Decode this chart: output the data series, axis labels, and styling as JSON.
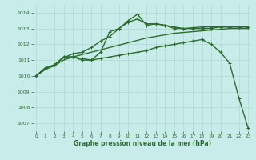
{
  "title": "Graphe pression niveau de la mer (hPa)",
  "background_color": "#c8ecea",
  "grid_color": "#b0d8d4",
  "line_color": "#2d6e2d",
  "xlim": [
    -0.3,
    23.3
  ],
  "ylim": [
    1006.5,
    1014.5
  ],
  "yticks": [
    1007,
    1008,
    1009,
    1010,
    1011,
    1012,
    1013,
    1014
  ],
  "xticks": [
    0,
    1,
    2,
    3,
    4,
    5,
    6,
    7,
    8,
    9,
    10,
    11,
    12,
    13,
    14,
    15,
    16,
    17,
    18,
    19,
    20,
    21,
    22,
    23
  ],
  "series": [
    {
      "x": [
        0,
        1,
        2,
        3,
        4,
        5,
        6,
        7,
        8,
        9,
        10,
        11,
        12,
        13,
        14,
        15,
        16,
        17,
        18,
        19,
        20,
        21,
        22,
        23
      ],
      "y": [
        1010.0,
        1010.5,
        1010.7,
        1011.2,
        1011.2,
        1011.0,
        1011.0,
        1011.5,
        1012.8,
        1013.0,
        1013.5,
        1013.9,
        1013.2,
        1013.3,
        1013.2,
        1013.0,
        1013.0,
        1013.0,
        1013.0,
        1013.0,
        1013.1,
        1013.1,
        1013.1,
        1013.1
      ],
      "marker": "+",
      "markersize": 3.5,
      "linewidth": 1.0
    },
    {
      "x": [
        0,
        1,
        2,
        3,
        4,
        5,
        6,
        7,
        8,
        9,
        10,
        11,
        12,
        13,
        14,
        15,
        16,
        17,
        18,
        19,
        20,
        21,
        22,
        23
      ],
      "y": [
        1010.0,
        1010.5,
        1010.7,
        1011.15,
        1011.4,
        1011.5,
        1011.8,
        1012.2,
        1012.5,
        1013.0,
        1013.4,
        1013.6,
        1013.3,
        1013.3,
        1013.2,
        1013.1,
        1013.0,
        1013.05,
        1013.1,
        1013.1,
        1013.1,
        1013.1,
        1013.1,
        1013.1
      ],
      "marker": "+",
      "markersize": 3.5,
      "linewidth": 1.0
    },
    {
      "x": [
        0,
        1,
        2,
        3,
        4,
        5,
        6,
        7,
        8,
        9,
        10,
        11,
        12,
        13,
        14,
        15,
        16,
        17,
        18,
        19,
        20,
        21,
        22,
        23
      ],
      "y": [
        1010.0,
        1010.5,
        1010.7,
        1011.2,
        1011.2,
        1011.1,
        1011.0,
        1011.1,
        1011.2,
        1011.3,
        1011.4,
        1011.5,
        1011.6,
        1011.8,
        1011.9,
        1012.0,
        1012.1,
        1012.2,
        1012.3,
        1012.0,
        1011.5,
        1010.8,
        1008.6,
        1006.7
      ],
      "marker": "+",
      "markersize": 3.0,
      "linewidth": 1.0
    },
    {
      "x": [
        0,
        1,
        2,
        3,
        4,
        5,
        6,
        7,
        8,
        9,
        10,
        11,
        12,
        13,
        14,
        15,
        16,
        17,
        18,
        19,
        20,
        21,
        22,
        23
      ],
      "y": [
        1010.0,
        1010.4,
        1010.65,
        1011.0,
        1011.2,
        1011.35,
        1011.5,
        1011.65,
        1011.8,
        1011.95,
        1012.1,
        1012.25,
        1012.4,
        1012.5,
        1012.6,
        1012.7,
        1012.75,
        1012.8,
        1012.85,
        1012.9,
        1012.95,
        1013.0,
        1013.0,
        1013.0
      ],
      "marker": null,
      "markersize": 0,
      "linewidth": 1.0
    }
  ]
}
